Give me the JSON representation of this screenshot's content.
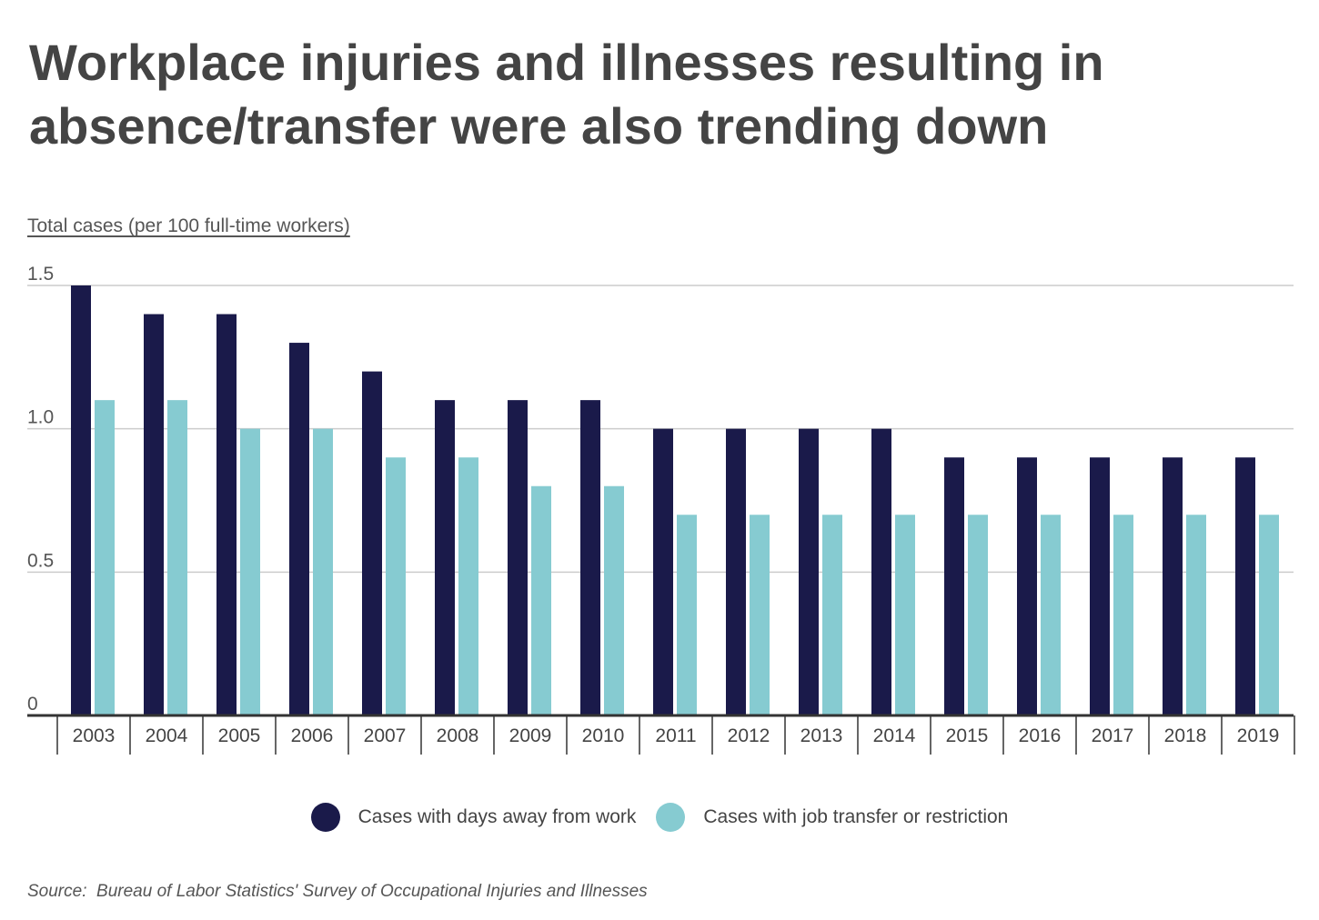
{
  "chart_data": {
    "type": "bar",
    "title": "Workplace injuries and illnesses resulting in absence/transfer were also trending down",
    "title_lines": [
      "Workplace injuries and illnesses resulting in",
      "absence/transfer were also trending down"
    ],
    "ylabel": "Total cases (per 100 full-time workers)",
    "xlabel": "",
    "ylim": [
      0,
      1.5
    ],
    "yticks": [
      {
        "value": 0,
        "label": "0"
      },
      {
        "value": 0.5,
        "label": "0.5"
      },
      {
        "value": 1.0,
        "label": "1.0"
      },
      {
        "value": 1.5,
        "label": "1.5"
      }
    ],
    "grid": true,
    "legend_position": "bottom-center",
    "categories": [
      "2003",
      "2004",
      "2005",
      "2006",
      "2007",
      "2008",
      "2009",
      "2010",
      "2011",
      "2012",
      "2013",
      "2014",
      "2015",
      "2016",
      "2017",
      "2018",
      "2019"
    ],
    "series": [
      {
        "name": "Cases with days away from work",
        "color": "#1a1a4a",
        "values": [
          1.5,
          1.4,
          1.4,
          1.3,
          1.2,
          1.1,
          1.1,
          1.1,
          1.0,
          1.0,
          1.0,
          1.0,
          0.9,
          0.9,
          0.9,
          0.9,
          0.9
        ]
      },
      {
        "name": "Cases with job transfer or restriction",
        "color": "#86cbd1",
        "values": [
          1.1,
          1.1,
          1.0,
          1.0,
          0.9,
          0.9,
          0.8,
          0.8,
          0.7,
          0.7,
          0.7,
          0.7,
          0.7,
          0.7,
          0.7,
          0.7,
          0.7
        ]
      }
    ]
  },
  "source": {
    "prefix": "Source:",
    "text": "Bureau of Labor Statistics' Survey of Occupational Injuries and Illnesses"
  },
  "colors": {
    "text": "#444444",
    "grid": "#cccccc",
    "axis": "#333333"
  }
}
